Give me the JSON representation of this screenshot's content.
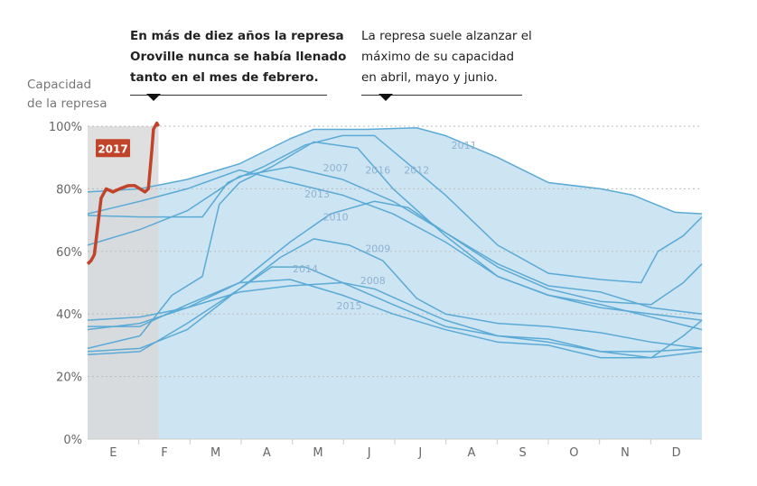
{
  "annotations": {
    "y_axis_title_line1": "Capacidad",
    "y_axis_title_line2": "de la represa",
    "note_february": [
      "En más de diez años la represa",
      "Oroville nunca se había llenado",
      "tanto en el mes de febrero."
    ],
    "note_peak": [
      "La represa suele alzanzar el",
      "máximo de su capacidad",
      "en abril, mayo y junio."
    ]
  },
  "colors": {
    "line": "#5aaad6",
    "fill": "#cde4f2",
    "highlight": "#c0432a",
    "shade": "#d9d9d9",
    "label": "#8fb2d2"
  },
  "chart_data": {
    "type": "line",
    "title": "",
    "xlabel": "",
    "ylabel": "Capacidad de la represa",
    "ylim": [
      0,
      100
    ],
    "y_ticks": [
      "0%",
      "20%",
      "40%",
      "60%",
      "80%",
      "100%"
    ],
    "x_ticks": [
      "E",
      "F",
      "M",
      "A",
      "M",
      "J",
      "J",
      "A",
      "S",
      "O",
      "N",
      "D"
    ],
    "grid": true,
    "highlight_series": "2017",
    "series": [
      {
        "name": "2011",
        "label_at": [
          "08-12",
          94
        ],
        "points": [
          [
            "01-01",
            79
          ],
          [
            "02-01",
            80
          ],
          [
            "03-01",
            83
          ],
          [
            "04-01",
            88
          ],
          [
            "05-01",
            96
          ],
          [
            "05-15",
            99
          ],
          [
            "06-15",
            99
          ],
          [
            "07-15",
            99.5
          ],
          [
            "08-01",
            97
          ],
          [
            "09-01",
            90
          ],
          [
            "10-01",
            82
          ],
          [
            "11-01",
            80
          ],
          [
            "11-20",
            78
          ],
          [
            "12-15",
            72.5
          ],
          [
            "12-31",
            72
          ]
        ]
      },
      {
        "name": "2016",
        "label_at": [
          "06-22",
          86
        ],
        "points": [
          [
            "01-01",
            29
          ],
          [
            "02-01",
            33
          ],
          [
            "02-20",
            46
          ],
          [
            "03-10",
            52
          ],
          [
            "03-20",
            75
          ],
          [
            "04-01",
            82
          ],
          [
            "04-20",
            87
          ],
          [
            "05-15",
            95
          ],
          [
            "06-10",
            93
          ],
          [
            "07-01",
            80
          ],
          [
            "08-01",
            65
          ],
          [
            "09-01",
            52
          ],
          [
            "10-01",
            46
          ],
          [
            "11-01",
            42
          ],
          [
            "12-01",
            40
          ],
          [
            "12-31",
            38
          ]
        ]
      },
      {
        "name": "2012",
        "label_at": [
          "07-15",
          86
        ],
        "points": [
          [
            "01-01",
            71.5
          ],
          [
            "02-01",
            71
          ],
          [
            "03-10",
            71
          ],
          [
            "03-25",
            82
          ],
          [
            "04-15",
            87
          ],
          [
            "05-10",
            94
          ],
          [
            "06-01",
            97
          ],
          [
            "06-20",
            97
          ],
          [
            "07-10",
            88
          ],
          [
            "08-01",
            78
          ],
          [
            "09-01",
            62
          ],
          [
            "10-01",
            53
          ],
          [
            "11-01",
            51
          ],
          [
            "11-25",
            50
          ],
          [
            "12-05",
            60
          ],
          [
            "12-20",
            65
          ],
          [
            "12-31",
            71
          ]
        ]
      },
      {
        "name": "2007",
        "label_at": [
          "05-28",
          86.7
        ],
        "points": [
          [
            "01-01",
            62
          ],
          [
            "02-01",
            67
          ],
          [
            "03-01",
            73
          ],
          [
            "04-01",
            84
          ],
          [
            "05-01",
            87
          ],
          [
            "06-01",
            83
          ],
          [
            "07-01",
            76
          ],
          [
            "08-01",
            66
          ],
          [
            "09-01",
            56
          ],
          [
            "10-01",
            49
          ],
          [
            "11-01",
            47
          ],
          [
            "12-01",
            42
          ],
          [
            "12-31",
            40
          ]
        ]
      },
      {
        "name": "2013",
        "label_at": [
          "05-17",
          78.4
        ],
        "points": [
          [
            "01-01",
            72
          ],
          [
            "02-01",
            76
          ],
          [
            "03-01",
            80
          ],
          [
            "04-01",
            86
          ],
          [
            "05-01",
            82
          ],
          [
            "06-01",
            78
          ],
          [
            "07-01",
            72
          ],
          [
            "08-01",
            63
          ],
          [
            "09-01",
            52
          ],
          [
            "10-01",
            46
          ],
          [
            "11-01",
            43
          ],
          [
            "12-01",
            39
          ],
          [
            "12-31",
            35
          ]
        ]
      },
      {
        "name": "2010",
        "label_at": [
          "05-28",
          71
        ],
        "points": [
          [
            "01-01",
            38
          ],
          [
            "02-01",
            39
          ],
          [
            "03-01",
            42
          ],
          [
            "04-01",
            50
          ],
          [
            "05-01",
            63
          ],
          [
            "05-25",
            72
          ],
          [
            "06-20",
            76
          ],
          [
            "07-10",
            74
          ],
          [
            "08-01",
            66
          ],
          [
            "09-01",
            55
          ],
          [
            "10-01",
            48
          ],
          [
            "11-01",
            44
          ],
          [
            "12-01",
            43
          ],
          [
            "12-20",
            50
          ],
          [
            "12-31",
            56
          ]
        ]
      },
      {
        "name": "2009",
        "label_at": [
          "06-22",
          61
        ],
        "points": [
          [
            "01-01",
            28
          ],
          [
            "02-01",
            29
          ],
          [
            "03-01",
            35
          ],
          [
            "04-01",
            48
          ],
          [
            "04-25",
            58
          ],
          [
            "05-15",
            64
          ],
          [
            "06-05",
            62
          ],
          [
            "06-25",
            57
          ],
          [
            "07-15",
            45
          ],
          [
            "08-01",
            40
          ],
          [
            "09-01",
            37
          ],
          [
            "10-01",
            36
          ],
          [
            "11-01",
            34
          ],
          [
            "12-01",
            31
          ],
          [
            "12-31",
            29
          ]
        ]
      },
      {
        "name": "2014",
        "label_at": [
          "05-10",
          54.5
        ],
        "points": [
          [
            "01-01",
            27
          ],
          [
            "02-01",
            28
          ],
          [
            "03-01",
            37
          ],
          [
            "04-01",
            48
          ],
          [
            "04-20",
            55
          ],
          [
            "05-10",
            55
          ],
          [
            "06-01",
            50
          ],
          [
            "07-01",
            43
          ],
          [
            "08-01",
            36
          ],
          [
            "09-01",
            33
          ],
          [
            "10-01",
            32
          ],
          [
            "11-01",
            28
          ],
          [
            "12-01",
            26
          ],
          [
            "12-31",
            28
          ]
        ]
      },
      {
        "name": "2008",
        "label_at": [
          "06-19",
          50.7
        ],
        "points": [
          [
            "01-01",
            35
          ],
          [
            "02-01",
            37
          ],
          [
            "03-01",
            42
          ],
          [
            "04-01",
            47
          ],
          [
            "05-01",
            49
          ],
          [
            "06-01",
            50
          ],
          [
            "06-20",
            48
          ],
          [
            "07-15",
            42
          ],
          [
            "08-01",
            38
          ],
          [
            "09-01",
            33
          ],
          [
            "10-01",
            31
          ],
          [
            "11-01",
            28
          ],
          [
            "12-01",
            28
          ],
          [
            "12-31",
            29
          ]
        ]
      },
      {
        "name": "2015",
        "label_at": [
          "06-05",
          42.7
        ],
        "points": [
          [
            "01-01",
            36
          ],
          [
            "02-01",
            36
          ],
          [
            "03-01",
            43
          ],
          [
            "04-01",
            50
          ],
          [
            "05-01",
            51
          ],
          [
            "06-01",
            46
          ],
          [
            "07-01",
            40
          ],
          [
            "08-01",
            35
          ],
          [
            "09-01",
            31
          ],
          [
            "10-01",
            30
          ],
          [
            "11-01",
            26
          ],
          [
            "12-01",
            26
          ],
          [
            "12-20",
            33
          ],
          [
            "12-31",
            38
          ]
        ]
      },
      {
        "name": "2017",
        "label_at": [
          "01-16",
          93
        ],
        "points": [
          [
            "01-01",
            56
          ],
          [
            "01-03",
            57
          ],
          [
            "01-05",
            59
          ],
          [
            "01-09",
            77
          ],
          [
            "01-12",
            80
          ],
          [
            "01-16",
            79
          ],
          [
            "01-20",
            80
          ],
          [
            "01-25",
            81
          ],
          [
            "01-29",
            81
          ],
          [
            "02-01",
            80
          ],
          [
            "02-04",
            79
          ],
          [
            "02-06",
            80
          ],
          [
            "02-08",
            92
          ],
          [
            "02-09",
            99
          ],
          [
            "02-11",
            101
          ],
          [
            "02-12",
            100
          ]
        ]
      }
    ]
  }
}
